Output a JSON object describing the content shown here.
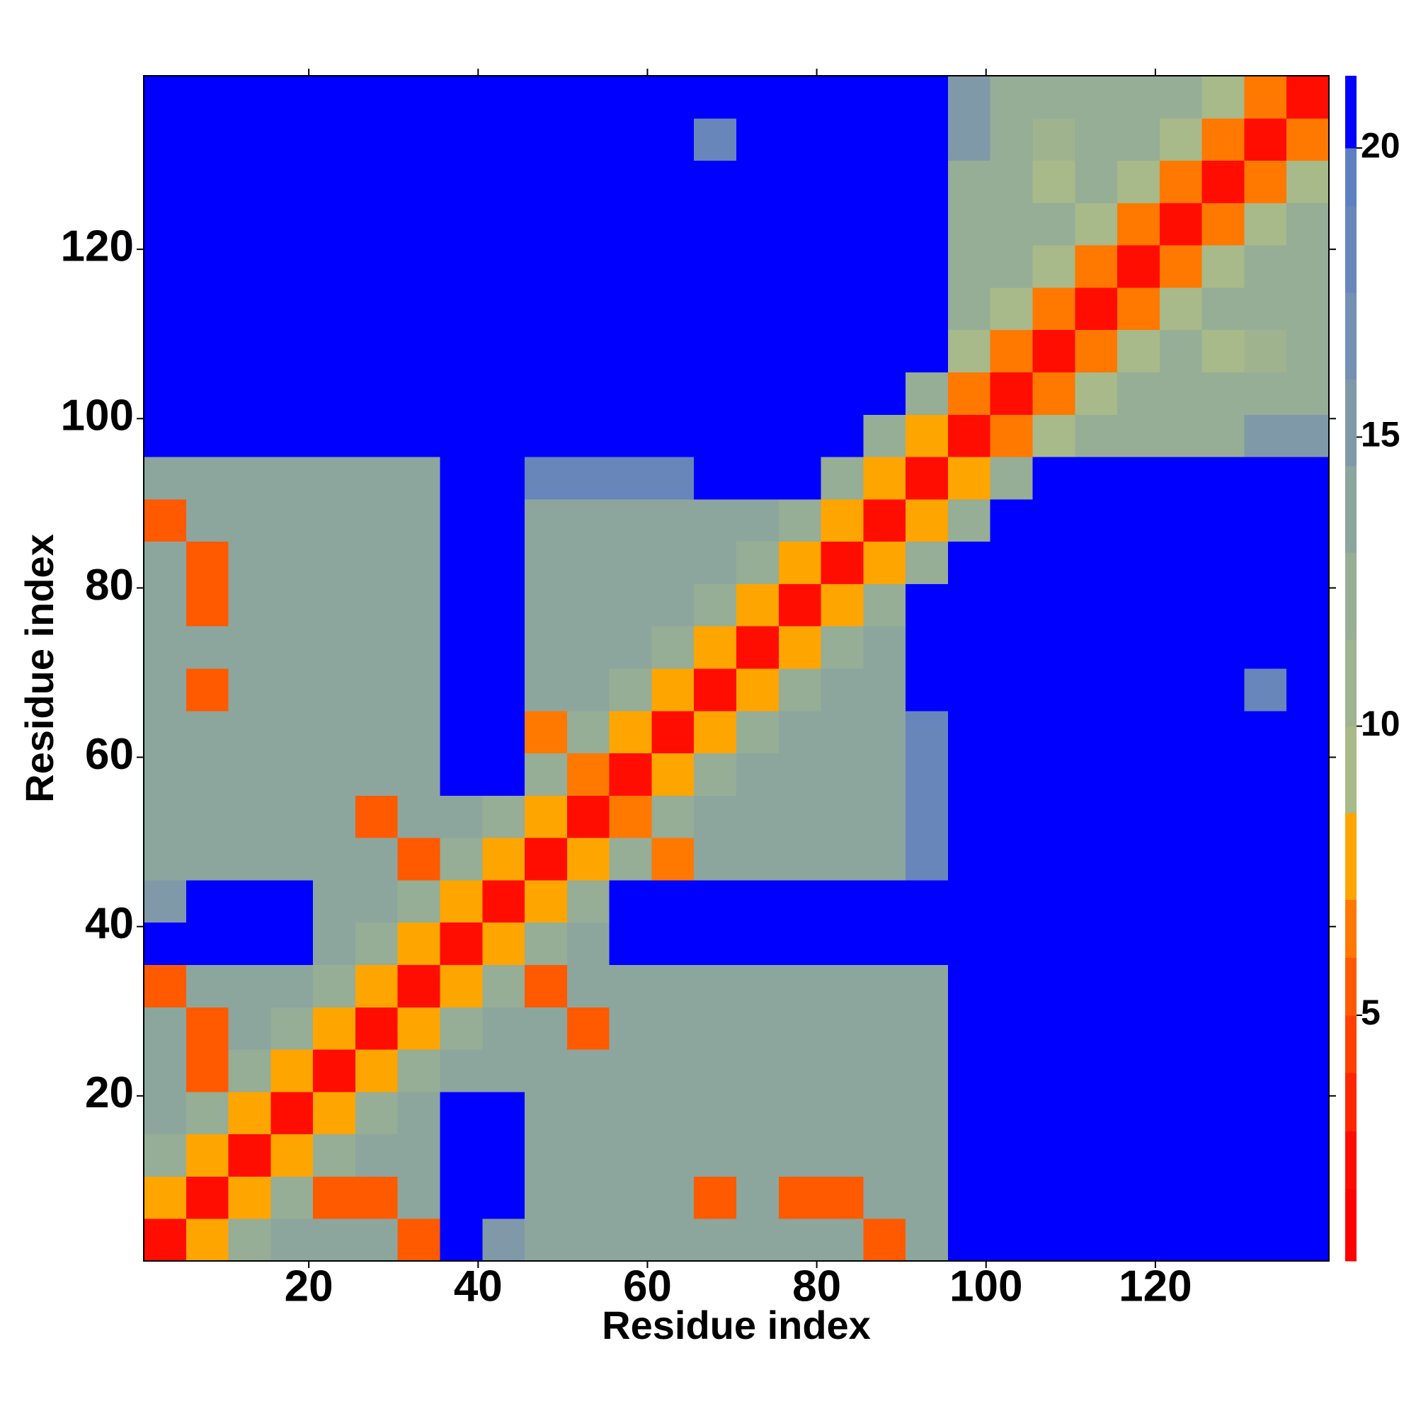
{
  "chart_data": {
    "type": "heatmap",
    "xlabel": "Residue index",
    "ylabel": "Residue index",
    "x": [
      3,
      8,
      13,
      18,
      23,
      28,
      33,
      38,
      43,
      48,
      53,
      58,
      63,
      68,
      73,
      78,
      83,
      88,
      93,
      98,
      103,
      108,
      113,
      118,
      123,
      128,
      133,
      138
    ],
    "y": [
      3,
      8,
      13,
      18,
      23,
      28,
      33,
      38,
      43,
      48,
      53,
      58,
      63,
      68,
      73,
      78,
      83,
      88,
      93,
      98,
      103,
      108,
      113,
      118,
      123,
      128,
      133,
      138
    ],
    "xlim": [
      0.5,
      140.5
    ],
    "ylim": [
      0.5,
      140.5
    ],
    "xticks": [
      20,
      40,
      60,
      80,
      100,
      120
    ],
    "yticks": [
      20,
      40,
      60,
      80,
      100,
      120
    ],
    "z": [
      [
        3,
        8,
        12,
        14,
        14,
        14,
        6,
        22,
        16,
        14,
        14,
        14,
        14,
        14,
        14,
        14,
        14,
        6,
        14,
        22,
        22,
        22,
        22,
        22,
        22,
        22,
        22,
        22
      ],
      [
        8,
        3,
        8,
        12,
        6,
        6,
        14,
        22,
        22,
        14,
        14,
        14,
        14,
        6,
        14,
        6,
        6,
        14,
        14,
        22,
        22,
        22,
        22,
        22,
        22,
        22,
        22,
        22
      ],
      [
        12,
        8,
        3,
        8,
        12,
        14,
        14,
        22,
        22,
        14,
        14,
        14,
        14,
        14,
        14,
        14,
        14,
        14,
        14,
        22,
        22,
        22,
        22,
        22,
        22,
        22,
        22,
        22
      ],
      [
        14,
        12,
        8,
        3,
        8,
        12,
        14,
        22,
        22,
        14,
        14,
        14,
        14,
        14,
        14,
        14,
        14,
        14,
        14,
        22,
        22,
        22,
        22,
        22,
        22,
        22,
        22,
        22
      ],
      [
        14,
        6,
        12,
        8,
        3,
        8,
        12,
        14,
        14,
        14,
        14,
        14,
        14,
        14,
        14,
        14,
        14,
        14,
        14,
        22,
        22,
        22,
        22,
        22,
        22,
        22,
        22,
        22
      ],
      [
        14,
        6,
        14,
        12,
        8,
        3,
        8,
        12,
        14,
        14,
        6,
        14,
        14,
        14,
        14,
        14,
        14,
        14,
        14,
        22,
        22,
        22,
        22,
        22,
        22,
        22,
        22,
        22
      ],
      [
        6,
        14,
        14,
        14,
        12,
        8,
        3,
        8,
        12,
        6,
        14,
        14,
        14,
        14,
        14,
        14,
        14,
        14,
        14,
        22,
        22,
        22,
        22,
        22,
        22,
        22,
        22,
        22
      ],
      [
        22,
        22,
        22,
        22,
        14,
        12,
        8,
        3,
        8,
        12,
        14,
        22,
        22,
        22,
        22,
        22,
        22,
        22,
        22,
        22,
        22,
        22,
        22,
        22,
        22,
        22,
        22,
        22
      ],
      [
        16,
        22,
        22,
        22,
        14,
        14,
        12,
        8,
        3,
        8,
        12,
        22,
        22,
        22,
        22,
        22,
        22,
        22,
        22,
        22,
        22,
        22,
        22,
        22,
        22,
        22,
        22,
        22
      ],
      [
        14,
        14,
        14,
        14,
        14,
        14,
        6,
        12,
        8,
        3,
        8,
        12,
        7,
        14,
        14,
        14,
        14,
        14,
        18,
        22,
        22,
        22,
        22,
        22,
        22,
        22,
        22,
        22
      ],
      [
        14,
        14,
        14,
        14,
        14,
        6,
        14,
        14,
        12,
        8,
        3,
        7,
        12,
        14,
        14,
        14,
        14,
        14,
        18,
        22,
        22,
        22,
        22,
        22,
        22,
        22,
        22,
        22
      ],
      [
        14,
        14,
        14,
        14,
        14,
        14,
        14,
        22,
        22,
        12,
        7,
        3,
        8,
        12,
        14,
        14,
        14,
        14,
        18,
        22,
        22,
        22,
        22,
        22,
        22,
        22,
        22,
        22
      ],
      [
        14,
        14,
        14,
        14,
        14,
        14,
        14,
        22,
        22,
        7,
        12,
        8,
        3,
        8,
        12,
        14,
        14,
        14,
        18,
        22,
        22,
        22,
        22,
        22,
        22,
        22,
        22,
        22
      ],
      [
        14,
        6,
        14,
        14,
        14,
        14,
        14,
        22,
        22,
        14,
        14,
        12,
        8,
        3,
        8,
        12,
        14,
        14,
        22,
        22,
        22,
        22,
        22,
        22,
        22,
        22,
        18,
        22
      ],
      [
        14,
        14,
        14,
        14,
        14,
        14,
        14,
        22,
        22,
        14,
        14,
        14,
        12,
        8,
        3,
        8,
        12,
        14,
        22,
        22,
        22,
        22,
        22,
        22,
        22,
        22,
        22,
        22
      ],
      [
        14,
        6,
        14,
        14,
        14,
        14,
        14,
        22,
        22,
        14,
        14,
        14,
        14,
        12,
        8,
        3,
        8,
        12,
        22,
        22,
        22,
        22,
        22,
        22,
        22,
        22,
        22,
        22
      ],
      [
        14,
        6,
        14,
        14,
        14,
        14,
        14,
        22,
        22,
        14,
        14,
        14,
        14,
        14,
        12,
        8,
        3,
        8,
        12,
        22,
        22,
        22,
        22,
        22,
        22,
        22,
        22,
        22
      ],
      [
        6,
        14,
        14,
        14,
        14,
        14,
        14,
        22,
        22,
        14,
        14,
        14,
        14,
        14,
        14,
        12,
        8,
        3,
        8,
        12,
        22,
        22,
        22,
        22,
        22,
        22,
        22,
        22
      ],
      [
        14,
        14,
        14,
        14,
        14,
        14,
        14,
        22,
        22,
        18,
        18,
        18,
        18,
        22,
        22,
        22,
        12,
        8,
        3,
        8,
        12,
        22,
        22,
        22,
        22,
        22,
        22,
        22
      ],
      [
        22,
        22,
        22,
        22,
        22,
        22,
        22,
        22,
        22,
        22,
        22,
        22,
        22,
        22,
        22,
        22,
        22,
        12,
        8,
        3,
        7,
        10,
        13,
        13,
        13,
        13,
        16,
        16
      ],
      [
        22,
        22,
        22,
        22,
        22,
        22,
        22,
        22,
        22,
        22,
        22,
        22,
        22,
        22,
        22,
        22,
        22,
        22,
        12,
        7,
        3,
        7,
        10,
        13,
        13,
        13,
        13,
        13
      ],
      [
        22,
        22,
        22,
        22,
        22,
        22,
        22,
        22,
        22,
        22,
        22,
        22,
        22,
        22,
        22,
        22,
        22,
        22,
        22,
        10,
        7,
        3,
        7,
        10,
        13,
        9,
        11,
        13
      ],
      [
        22,
        22,
        22,
        22,
        22,
        22,
        22,
        22,
        22,
        22,
        22,
        22,
        22,
        22,
        22,
        22,
        22,
        22,
        22,
        13,
        10,
        7,
        3,
        7,
        10,
        13,
        13,
        13
      ],
      [
        22,
        22,
        22,
        22,
        22,
        22,
        22,
        22,
        22,
        22,
        22,
        22,
        22,
        22,
        22,
        22,
        22,
        22,
        22,
        13,
        13,
        10,
        7,
        3,
        7,
        10,
        13,
        13
      ],
      [
        22,
        22,
        22,
        22,
        22,
        22,
        22,
        22,
        22,
        22,
        22,
        22,
        22,
        22,
        22,
        22,
        22,
        22,
        22,
        13,
        13,
        13,
        10,
        7,
        3,
        7,
        10,
        13
      ],
      [
        22,
        22,
        22,
        22,
        22,
        22,
        22,
        22,
        22,
        22,
        22,
        22,
        22,
        22,
        22,
        22,
        22,
        22,
        22,
        13,
        13,
        9,
        13,
        10,
        7,
        3,
        7,
        10
      ],
      [
        22,
        22,
        22,
        22,
        22,
        22,
        22,
        22,
        22,
        22,
        22,
        22,
        22,
        18,
        22,
        22,
        22,
        22,
        22,
        16,
        13,
        11,
        13,
        13,
        10,
        7,
        3,
        7
      ],
      [
        22,
        22,
        22,
        22,
        22,
        22,
        22,
        22,
        22,
        22,
        22,
        22,
        22,
        22,
        22,
        22,
        22,
        22,
        22,
        16,
        13,
        13,
        13,
        13,
        13,
        10,
        7,
        3
      ]
    ],
    "colorbar": {
      "clim": [
        0.75,
        21.25
      ],
      "ticks": [
        5,
        10,
        15,
        20
      ],
      "levels": [
        2,
        3,
        4,
        5,
        6,
        7,
        8.5,
        10,
        11.5,
        13,
        14.5,
        16,
        17.5,
        19,
        20,
        21.25
      ],
      "colors": [
        "#ff0000",
        "#ff0d00",
        "#ff2600",
        "#ff4000",
        "#ff5a00",
        "#ff7800",
        "#ffa500",
        "#a8b98a",
        "#9fb38f",
        "#96ad96",
        "#8ca69e",
        "#8099a8",
        "#7490b2",
        "#6886ba",
        "#5d80c2",
        "#0000ff"
      ]
    }
  }
}
